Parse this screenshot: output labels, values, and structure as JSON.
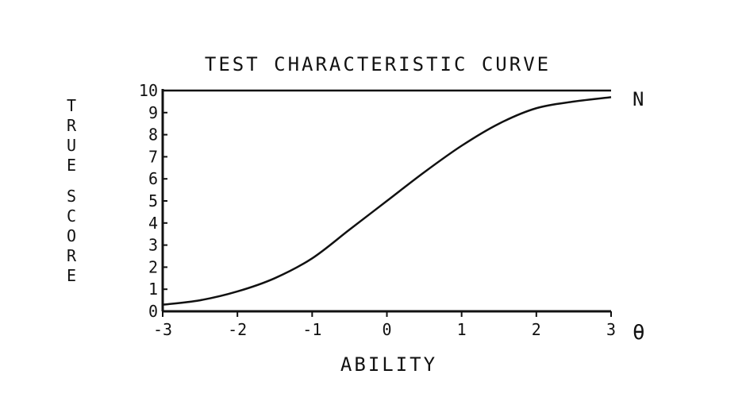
{
  "chart_data": {
    "type": "line",
    "title": "TEST CHARACTERISTIC CURVE",
    "xlabel": "ABILITY",
    "ylabel": "TRUE SCORE",
    "x_symbol": "θ",
    "y_max_label": "N",
    "xlim": [
      -3,
      3
    ],
    "ylim": [
      0,
      10
    ],
    "x_ticks": [
      "-3",
      "-2",
      "-1",
      "0",
      "1",
      "2",
      "3"
    ],
    "y_ticks": [
      "0",
      "1",
      "2",
      "3",
      "4",
      "5",
      "6",
      "7",
      "8",
      "9",
      "10"
    ],
    "grid": false,
    "reference_line_y": 10,
    "series": [
      {
        "x": [
          -3.0,
          -2.5,
          -2.0,
          -1.5,
          -1.0,
          -0.5,
          0.0,
          0.5,
          1.0,
          1.5,
          2.0,
          2.5,
          3.0
        ],
        "y": [
          0.3,
          0.5,
          0.9,
          1.5,
          2.4,
          3.7,
          5.0,
          6.3,
          7.5,
          8.5,
          9.2,
          9.5,
          9.7
        ]
      }
    ],
    "color": "#111111"
  }
}
